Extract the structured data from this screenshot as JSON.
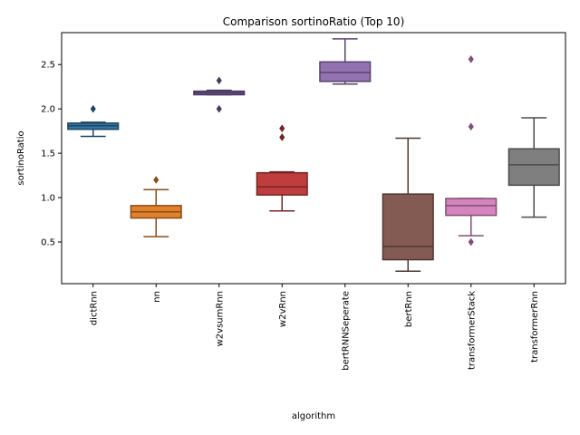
{
  "chart_data": {
    "type": "box",
    "title": "Comparison sortinoRatio (Top 10)",
    "xlabel": "algorithm",
    "ylabel": "sortinoRatio",
    "ylim": [
      0.03,
      2.86
    ],
    "yticks": [
      0.5,
      1.0,
      1.5,
      2.0,
      2.5
    ],
    "ytick_labels": [
      "0.5",
      "1.0",
      "1.5",
      "2.0",
      "2.5"
    ],
    "categories": [
      "dictRnn",
      "nn",
      "w2vsumRnn",
      "w2vRnn",
      "bertRNNSeperate",
      "bertRnn",
      "transformerStack",
      "transformerRnn"
    ],
    "boxes": [
      {
        "name": "dictRnn",
        "color": "#3274a1",
        "whisker_low": 1.69,
        "q1": 1.77,
        "median": 1.81,
        "q3": 1.84,
        "whisker_high": 1.85,
        "outliers": [
          2.0
        ]
      },
      {
        "name": "nn",
        "color": "#e1812c",
        "whisker_low": 0.56,
        "q1": 0.77,
        "median": 0.84,
        "q3": 0.91,
        "whisker_high": 1.09,
        "outliers": [
          1.2
        ]
      },
      {
        "name": "w2vsumRnn",
        "color": "#7a5fa0",
        "whisker_low": 2.16,
        "q1": 2.16,
        "median": 2.18,
        "q3": 2.2,
        "whisker_high": 2.21,
        "outliers": [
          2.0,
          2.32
        ]
      },
      {
        "name": "w2vRnn",
        "color": "#c03d3e",
        "whisker_low": 0.85,
        "q1": 1.03,
        "median": 1.12,
        "q3": 1.28,
        "whisker_high": 1.29,
        "outliers": [
          1.68,
          1.78
        ]
      },
      {
        "name": "bertRNNSeperate",
        "color": "#9372b2",
        "whisker_low": 2.28,
        "q1": 2.31,
        "median": 2.41,
        "q3": 2.53,
        "whisker_high": 2.79,
        "outliers": []
      },
      {
        "name": "bertRnn",
        "color": "#845b53",
        "whisker_low": 0.17,
        "q1": 0.3,
        "median": 0.45,
        "q3": 1.04,
        "whisker_high": 1.67,
        "outliers": []
      },
      {
        "name": "transformerStack",
        "color": "#d684bd",
        "whisker_low": 0.57,
        "q1": 0.8,
        "median": 0.91,
        "q3": 0.99,
        "whisker_high": 0.99,
        "outliers": [
          0.5,
          1.8,
          2.56
        ]
      },
      {
        "name": "transformerRnn",
        "color": "#7f7f7f",
        "whisker_low": 0.78,
        "q1": 1.14,
        "median": 1.37,
        "q3": 1.55,
        "whisker_high": 1.9,
        "outliers": []
      }
    ],
    "grid": false,
    "legend": "none"
  }
}
